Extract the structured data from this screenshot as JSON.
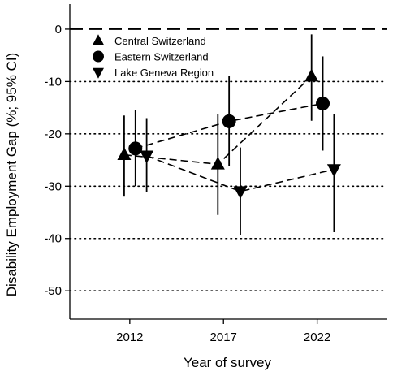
{
  "chart_data": {
    "type": "scatter",
    "title": "",
    "xlabel": "Year of survey",
    "ylabel": "Disability Employment Gap (%; 95% CI)",
    "xticks": [
      "2012",
      "2017",
      "2022"
    ],
    "yticks": [
      "0",
      "-10",
      "-20",
      "-30",
      "-40",
      "-50"
    ],
    "xlim": [
      2008.8,
      2025.7
    ],
    "ylim": [
      -55.4,
      4.8
    ],
    "grid": "horizontal dotted at -10, -20, -30, -40, -50; dashed at 0",
    "legend_position": "top-left",
    "connector": "dashed",
    "series": [
      {
        "name": "Central Switzerland",
        "marker": "triangle-up",
        "points": [
          {
            "x": 2011.7,
            "y": -24.0,
            "lo": -32.0,
            "hi": -16.5
          },
          {
            "x": 2016.7,
            "y": -25.8,
            "lo": -35.5,
            "hi": -16.2
          },
          {
            "x": 2021.7,
            "y": -9.0,
            "lo": -17.5,
            "hi": -1.0
          }
        ]
      },
      {
        "name": "Eastern Switzerland",
        "marker": "circle",
        "points": [
          {
            "x": 2012.3,
            "y": -22.8,
            "lo": -30.0,
            "hi": -15.5
          },
          {
            "x": 2017.3,
            "y": -17.6,
            "lo": -26.2,
            "hi": -9.0
          },
          {
            "x": 2022.3,
            "y": -14.2,
            "lo": -23.2,
            "hi": -5.2
          }
        ]
      },
      {
        "name": "Lake Geneva Region",
        "marker": "triangle-down",
        "points": [
          {
            "x": 2012.9,
            "y": -24.2,
            "lo": -31.2,
            "hi": -17.0
          },
          {
            "x": 2017.9,
            "y": -31.0,
            "lo": -39.4,
            "hi": -22.6
          },
          {
            "x": 2022.9,
            "y": -26.8,
            "lo": -38.8,
            "hi": -16.2
          }
        ]
      }
    ]
  }
}
